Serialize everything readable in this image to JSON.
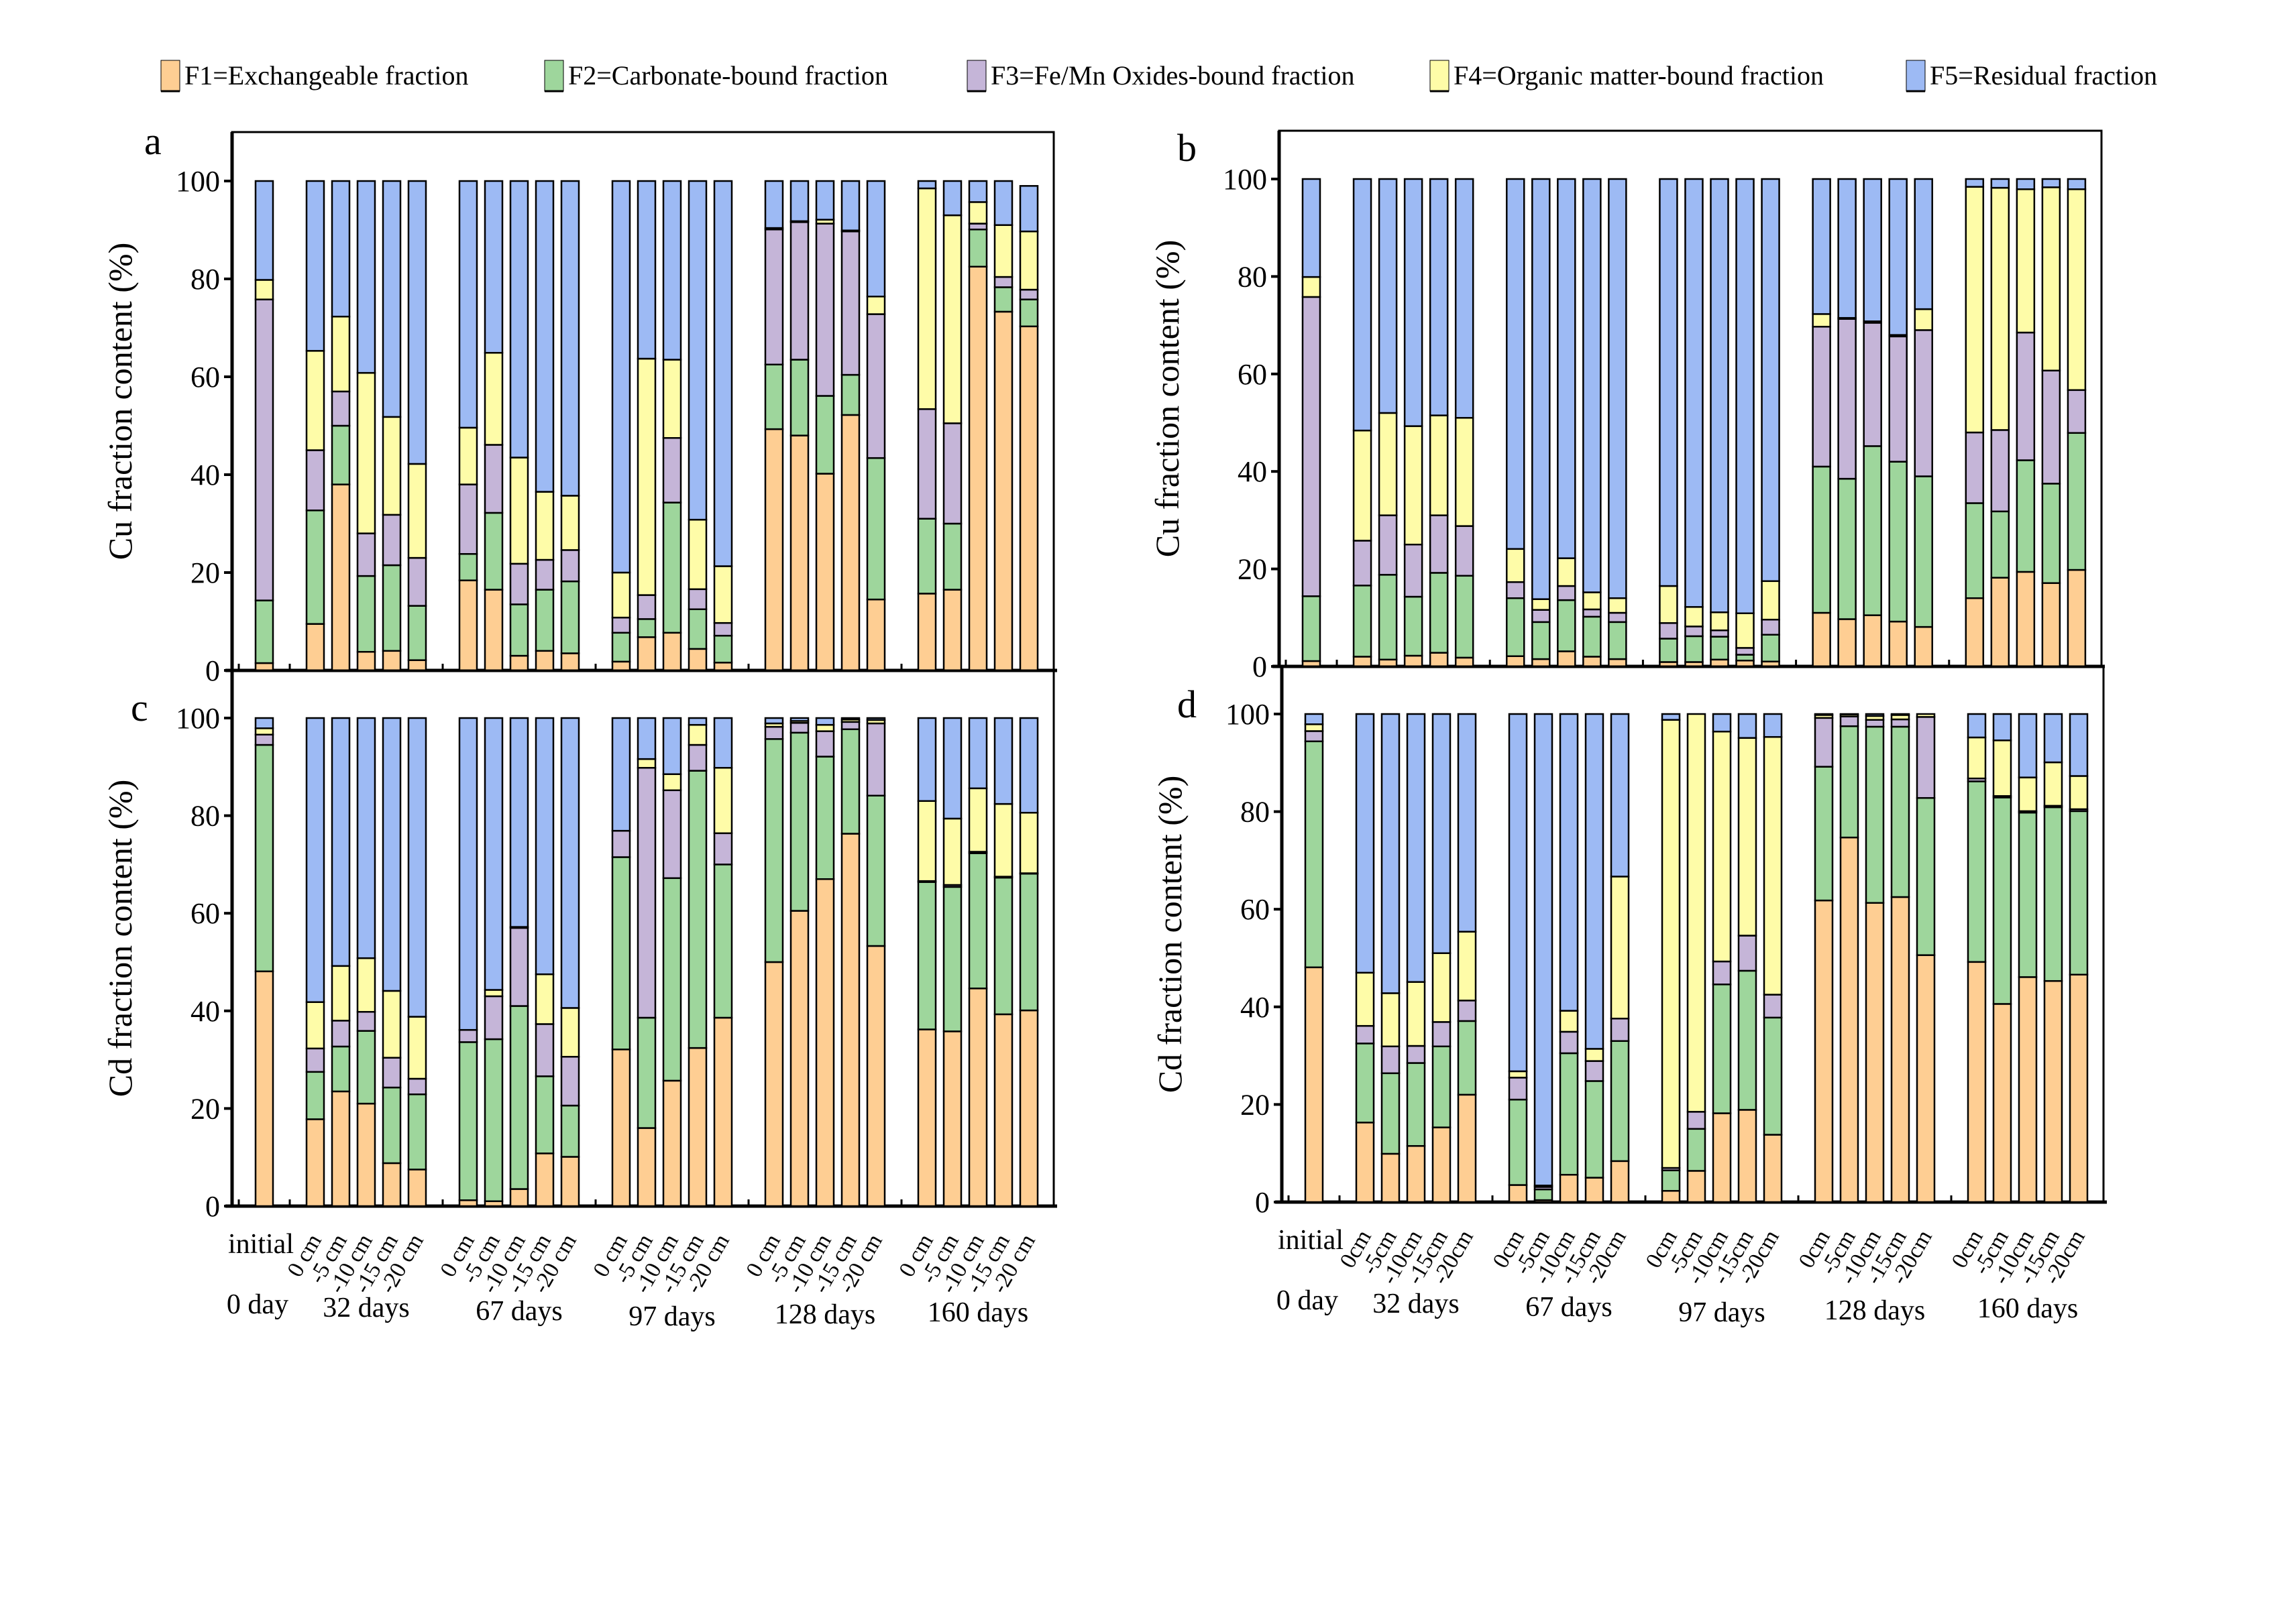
{
  "legend": [
    {
      "key": "F1",
      "label": "F1=Exchangeable fraction",
      "color": "#FECE93"
    },
    {
      "key": "F2",
      "label": "F2=Carbonate-bound fraction",
      "color": "#9ED69C"
    },
    {
      "key": "F3",
      "label": "F3=Fe/Mn Oxides-bound fraction",
      "color": "#C5B5D8"
    },
    {
      "key": "F4",
      "label": "F4=Organic matter-bound fraction",
      "color": "#FEFCA8"
    },
    {
      "key": "F5",
      "label": "F5=Residual fraction",
      "color": "#9DBAF4"
    }
  ],
  "x_axis": {
    "categories": [
      "initial",
      "0 cm",
      "-5 cm",
      "-10 cm",
      "-15 cm",
      "-20 cm",
      "0 cm",
      "-5 cm",
      "-10 cm",
      "-15 cm",
      "-20 cm",
      "0 cm",
      "-5 cm",
      "-10 cm",
      "-15 cm",
      "-20 cm",
      "0 cm",
      "-5 cm",
      "-10 cm",
      "-15 cm",
      "-20 cm",
      "0 cm",
      "-5 cm",
      "-10 cm",
      "-15 cm",
      "-20 cm"
    ],
    "categories_d": [
      "initial",
      "0cm",
      "-5cm",
      "-10cm",
      "-15cm",
      "-20cm",
      "0cm",
      "-5cm",
      "-10cm",
      "-15cm",
      "-20cm",
      "0cm",
      "-5cm",
      "-10cm",
      "-15cm",
      "-20cm",
      "0cm",
      "-5cm",
      "-10cm",
      "-15cm",
      "-20cm",
      "0cm",
      "-5cm",
      "-10cm",
      "-15cm",
      "-20cm"
    ],
    "groups": [
      "0 day",
      "32 days",
      "67 days",
      "97 days",
      "128 days",
      "160 days"
    ]
  },
  "chart_data": [
    {
      "panel": "a",
      "type": "bar",
      "stacked": true,
      "ylabel": "Cu fraction content (%)",
      "ylim": [
        0,
        110
      ],
      "yticks": [
        0,
        20,
        40,
        60,
        80,
        100
      ],
      "note": "values are cumulative tops of F1..F4 and total (F5 top)",
      "cumulative": [
        [
          1.5,
          14.3,
          75.8,
          79.8,
          100
        ],
        [
          9.5,
          32.7,
          45.0,
          65.3,
          100
        ],
        [
          38.0,
          50.0,
          57.0,
          72.3,
          100
        ],
        [
          3.8,
          19.3,
          28.0,
          60.8,
          100
        ],
        [
          4.0,
          21.5,
          31.8,
          51.8,
          100
        ],
        [
          2.1,
          13.2,
          23.0,
          42.2,
          100
        ],
        [
          18.4,
          23.8,
          38.0,
          49.6,
          100
        ],
        [
          16.5,
          32.2,
          46.1,
          64.9,
          100
        ],
        [
          3.0,
          13.5,
          21.8,
          43.5,
          100
        ],
        [
          4.0,
          16.5,
          22.6,
          36.5,
          100
        ],
        [
          3.5,
          18.2,
          24.6,
          35.7,
          100
        ],
        [
          1.8,
          7.7,
          10.8,
          20.0,
          100
        ],
        [
          6.8,
          10.5,
          15.4,
          63.7,
          100
        ],
        [
          7.7,
          34.3,
          47.5,
          63.5,
          100
        ],
        [
          4.4,
          12.5,
          16.6,
          30.8,
          100
        ],
        [
          1.6,
          7.1,
          9.7,
          21.3,
          100
        ],
        [
          49.3,
          62.5,
          90.1,
          90.4,
          100
        ],
        [
          48.0,
          63.5,
          91.6,
          91.8,
          100
        ],
        [
          40.2,
          56.1,
          91.3,
          92.1,
          100
        ],
        [
          52.2,
          60.4,
          89.7,
          89.9,
          100
        ],
        [
          14.5,
          43.4,
          72.8,
          76.4,
          100
        ],
        [
          15.7,
          31.0,
          53.4,
          98.5,
          100
        ],
        [
          16.5,
          30.0,
          50.5,
          93.0,
          100
        ],
        [
          82.5,
          90.1,
          91.3,
          95.7,
          100
        ],
        [
          73.3,
          78.3,
          80.4,
          91.0,
          100
        ],
        [
          70.3,
          75.8,
          77.8,
          89.7,
          99.0
        ]
      ]
    },
    {
      "panel": "b",
      "type": "bar",
      "stacked": true,
      "ylabel": "Cu fraction content (%)",
      "ylim": [
        0,
        110
      ],
      "yticks": [
        0,
        20,
        40,
        60,
        80,
        100
      ],
      "cumulative": [
        [
          1.1,
          14.4,
          75.8,
          79.9,
          100
        ],
        [
          2.0,
          16.6,
          25.8,
          48.4,
          100
        ],
        [
          1.4,
          18.8,
          31.0,
          52.0,
          100
        ],
        [
          2.2,
          14.3,
          25.0,
          49.3,
          100
        ],
        [
          2.8,
          19.2,
          31.0,
          51.5,
          100
        ],
        [
          1.8,
          18.6,
          28.8,
          51.0,
          100
        ],
        [
          2.1,
          14.0,
          17.3,
          24.1,
          100
        ],
        [
          1.5,
          9.1,
          11.6,
          13.8,
          100
        ],
        [
          3.1,
          13.6,
          16.5,
          22.2,
          100
        ],
        [
          2.0,
          10.2,
          11.7,
          15.2,
          100
        ],
        [
          1.5,
          9.1,
          11.0,
          14.0,
          100
        ],
        [
          0.9,
          5.7,
          8.9,
          16.5,
          100
        ],
        [
          0.9,
          6.2,
          8.2,
          12.2,
          100
        ],
        [
          1.4,
          6.1,
          7.4,
          11.1,
          100
        ],
        [
          1.2,
          2.4,
          3.8,
          10.9,
          100
        ],
        [
          1.0,
          6.5,
          9.6,
          17.5,
          100
        ],
        [
          11.0,
          41.0,
          69.7,
          72.3,
          100
        ],
        [
          9.7,
          38.5,
          71.3,
          71.5,
          100
        ],
        [
          10.5,
          45.2,
          70.5,
          70.8,
          100
        ],
        [
          9.2,
          42.0,
          67.7,
          68.0,
          100
        ],
        [
          8.1,
          39.0,
          69.0,
          73.3,
          100
        ],
        [
          14.0,
          33.5,
          48.0,
          98.4,
          100
        ],
        [
          18.2,
          31.8,
          48.5,
          98.2,
          100
        ],
        [
          19.4,
          42.3,
          68.5,
          97.9,
          100
        ],
        [
          17.1,
          37.5,
          60.7,
          98.3,
          100
        ],
        [
          19.8,
          47.9,
          56.7,
          97.9,
          100
        ]
      ]
    },
    {
      "panel": "c",
      "type": "bar",
      "stacked": true,
      "ylabel": "Cd fraction content (%)",
      "ylim": [
        0,
        110
      ],
      "yticks": [
        0,
        20,
        40,
        60,
        80,
        100
      ],
      "cumulative": [
        [
          48.1,
          94.5,
          96.6,
          97.9,
          100
        ],
        [
          17.8,
          27.5,
          32.3,
          41.8,
          100
        ],
        [
          23.5,
          32.7,
          38.0,
          49.2,
          100
        ],
        [
          21.0,
          35.9,
          39.8,
          50.8,
          100
        ],
        [
          8.8,
          24.3,
          30.4,
          44.1,
          100
        ],
        [
          7.5,
          22.9,
          26.1,
          38.8,
          100
        ],
        [
          1.2,
          33.6,
          36.1,
          36.1,
          100
        ],
        [
          1.0,
          34.2,
          43.0,
          44.3,
          100
        ],
        [
          3.5,
          41.0,
          57.0,
          57.2,
          100
        ],
        [
          10.8,
          26.6,
          37.3,
          47.5,
          100
        ],
        [
          10.1,
          20.6,
          30.6,
          40.6,
          100
        ],
        [
          32.1,
          71.5,
          76.9,
          76.9,
          100
        ],
        [
          16.0,
          38.6,
          89.8,
          91.6,
          100
        ],
        [
          25.7,
          67.2,
          85.2,
          88.5,
          100
        ],
        [
          32.4,
          89.2,
          94.5,
          98.6,
          100
        ],
        [
          38.6,
          70.0,
          76.4,
          89.8,
          100
        ],
        [
          50.0,
          95.7,
          98.2,
          98.9,
          100
        ],
        [
          60.5,
          97.0,
          99.0,
          99.4,
          100
        ],
        [
          67.0,
          92.1,
          97.3,
          98.6,
          100
        ],
        [
          76.3,
          97.7,
          99.2,
          99.7,
          100
        ],
        [
          53.3,
          84.1,
          98.9,
          99.6,
          100
        ],
        [
          36.2,
          66.4,
          66.6,
          83.0,
          100
        ],
        [
          35.8,
          65.4,
          65.8,
          79.4,
          100
        ],
        [
          44.6,
          72.3,
          72.6,
          85.6,
          100
        ],
        [
          39.3,
          67.3,
          67.5,
          82.4,
          100
        ],
        [
          40.1,
          68.1,
          68.2,
          80.6,
          100
        ]
      ]
    },
    {
      "panel": "d",
      "type": "bar",
      "stacked": true,
      "ylabel": "Cd fraction content (%)",
      "ylim": [
        0,
        110
      ],
      "yticks": [
        0,
        20,
        40,
        60,
        80,
        100
      ],
      "cumulative": [
        [
          48.1,
          94.4,
          96.5,
          97.9,
          100
        ],
        [
          16.3,
          32.5,
          36.1,
          47.0,
          100
        ],
        [
          9.9,
          26.4,
          31.9,
          42.8,
          100
        ],
        [
          11.5,
          28.5,
          32.0,
          45.1,
          100
        ],
        [
          15.3,
          31.9,
          36.9,
          51.0,
          100
        ],
        [
          22.0,
          37.1,
          41.3,
          55.4,
          100
        ],
        [
          3.5,
          21.0,
          25.5,
          26.8,
          100
        ],
        [
          0.4,
          2.6,
          3.1,
          3.4,
          100
        ],
        [
          5.6,
          30.5,
          34.9,
          39.2,
          100
        ],
        [
          5.0,
          24.8,
          28.9,
          31.4,
          100
        ],
        [
          8.4,
          33.0,
          37.6,
          66.7,
          100
        ],
        [
          2.3,
          6.5,
          7.0,
          98.8,
          100
        ],
        [
          6.4,
          15.0,
          18.5,
          100,
          100
        ],
        [
          18.2,
          44.6,
          49.3,
          96.4,
          100
        ],
        [
          18.9,
          47.4,
          54.6,
          95.1,
          100
        ],
        [
          13.8,
          37.8,
          42.5,
          95.3,
          100
        ],
        [
          61.8,
          89.2,
          99.2,
          99.8,
          100
        ],
        [
          74.7,
          97.5,
          99.5,
          99.9,
          100
        ],
        [
          61.3,
          97.4,
          98.8,
          99.6,
          100
        ],
        [
          62.5,
          97.4,
          98.9,
          99.8,
          100
        ],
        [
          50.6,
          82.8,
          99.4,
          100,
          100
        ],
        [
          49.2,
          86.2,
          86.8,
          95.2,
          100
        ],
        [
          40.6,
          82.9,
          83.2,
          94.6,
          100
        ],
        [
          46.1,
          79.8,
          80.1,
          87.0,
          100
        ],
        [
          45.3,
          80.9,
          81.2,
          90.1,
          100
        ],
        [
          46.6,
          80.1,
          80.5,
          87.3,
          100
        ]
      ]
    }
  ]
}
